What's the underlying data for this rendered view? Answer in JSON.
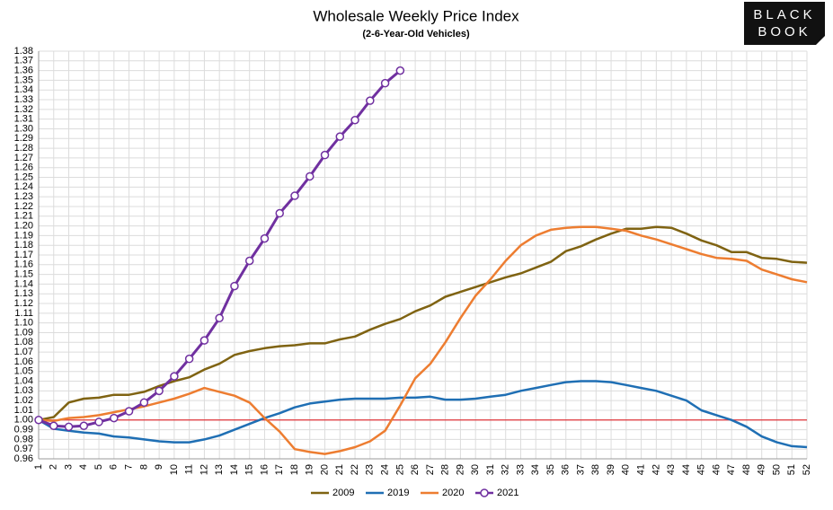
{
  "chart_data": {
    "type": "line",
    "title": "Wholesale Weekly Price Index",
    "subtitle": "(2-6-Year-Old Vehicles)",
    "logo": [
      "BLACK",
      "BOOK"
    ],
    "categories": [
      "1",
      "2",
      "3",
      "4",
      "5",
      "6",
      "7",
      "8",
      "9",
      "10",
      "11",
      "12",
      "13",
      "14",
      "15",
      "16",
      "17",
      "18",
      "19",
      "20",
      "21",
      "22",
      "23",
      "24",
      "25",
      "26",
      "27",
      "28",
      "29",
      "30",
      "31",
      "32",
      "33",
      "34",
      "35",
      "36",
      "37",
      "38",
      "39",
      "40",
      "41",
      "42",
      "43",
      "44",
      "45",
      "46",
      "47",
      "48",
      "49",
      "50",
      "51",
      "52"
    ],
    "ylim": [
      0.96,
      1.38
    ],
    "yticks": [
      {
        "value": 0.96,
        "label": "0.96"
      },
      {
        "value": 0.97,
        "label": "0.97"
      },
      {
        "value": 0.98,
        "label": "0.98"
      },
      {
        "value": 0.99,
        "label": "0.99"
      },
      {
        "value": 1.0,
        "label": "1.00"
      },
      {
        "value": 1.01,
        "label": "1.01"
      },
      {
        "value": 1.02,
        "label": "1.02"
      },
      {
        "value": 1.03,
        "label": "1.03"
      },
      {
        "value": 1.04,
        "label": "1.04"
      },
      {
        "value": 1.05,
        "label": "1.05"
      },
      {
        "value": 1.06,
        "label": "1.06"
      },
      {
        "value": 1.07,
        "label": "1.07"
      },
      {
        "value": 1.08,
        "label": "1.08"
      },
      {
        "value": 1.09,
        "label": "1.09"
      },
      {
        "value": 1.1,
        "label": "1.10"
      },
      {
        "value": 1.11,
        "label": "1.11"
      },
      {
        "value": 1.12,
        "label": "1.12"
      },
      {
        "value": 1.13,
        "label": "1.13"
      },
      {
        "value": 1.14,
        "label": "1.14"
      },
      {
        "value": 1.15,
        "label": "1.15"
      },
      {
        "value": 1.16,
        "label": "1.16"
      },
      {
        "value": 1.17,
        "label": "1.17"
      },
      {
        "value": 1.18,
        "label": "1.18"
      },
      {
        "value": 1.19,
        "label": "1.19"
      },
      {
        "value": 1.2,
        "label": "1.20"
      },
      {
        "value": 1.21,
        "label": "1.21"
      },
      {
        "value": 1.22,
        "label": "1.22"
      },
      {
        "value": 1.23,
        "label": "1.23"
      },
      {
        "value": 1.24,
        "label": "1.24"
      },
      {
        "value": 1.25,
        "label": "1.25"
      },
      {
        "value": 1.26,
        "label": "1.26"
      },
      {
        "value": 1.27,
        "label": "1.27"
      },
      {
        "value": 1.28,
        "label": "1.28"
      },
      {
        "value": 1.29,
        "label": "1.29"
      },
      {
        "value": 1.3,
        "label": "1.30"
      },
      {
        "value": 1.31,
        "label": "1.31"
      },
      {
        "value": 1.32,
        "label": "1.32"
      },
      {
        "value": 1.33,
        "label": "1.33"
      },
      {
        "value": 1.34,
        "label": "1.34"
      },
      {
        "value": 1.35,
        "label": "1.35"
      },
      {
        "value": 1.36,
        "label": "1.36"
      },
      {
        "value": 1.37,
        "label": "1.37"
      },
      {
        "value": 1.38,
        "label": "1.38"
      }
    ],
    "grid": true,
    "reference_line": {
      "value": 1.0,
      "color": "#e0353a"
    },
    "legend": "bottom",
    "series": [
      {
        "name": "2009",
        "color": "#7f6312",
        "markers": false,
        "values": [
          1.0,
          1.003,
          1.018,
          1.022,
          1.023,
          1.026,
          1.026,
          1.029,
          1.035,
          1.04,
          1.044,
          1.052,
          1.058,
          1.067,
          1.071,
          1.074,
          1.076,
          1.077,
          1.079,
          1.079,
          1.083,
          1.086,
          1.093,
          1.099,
          1.104,
          1.112,
          1.118,
          1.127,
          1.132,
          1.137,
          1.142,
          1.147,
          1.151,
          1.157,
          1.163,
          1.174,
          1.179,
          1.186,
          1.192,
          1.197,
          1.197,
          1.199,
          1.198,
          1.192,
          1.185,
          1.18,
          1.173,
          1.173,
          1.167,
          1.166,
          1.163,
          1.162
        ]
      },
      {
        "name": "2019",
        "color": "#1f6fb4",
        "markers": false,
        "values": [
          1.0,
          0.991,
          0.989,
          0.987,
          0.986,
          0.983,
          0.982,
          0.98,
          0.978,
          0.977,
          0.977,
          0.98,
          0.984,
          0.99,
          0.996,
          1.002,
          1.007,
          1.013,
          1.017,
          1.019,
          1.021,
          1.022,
          1.022,
          1.022,
          1.023,
          1.023,
          1.024,
          1.021,
          1.021,
          1.022,
          1.024,
          1.026,
          1.03,
          1.033,
          1.036,
          1.039,
          1.04,
          1.04,
          1.039,
          1.036,
          1.033,
          1.03,
          1.025,
          1.02,
          1.01,
          1.005,
          1.0,
          0.993,
          0.983,
          0.977,
          0.973,
          0.972
        ]
      },
      {
        "name": "2020",
        "color": "#ed7d31",
        "markers": false,
        "values": [
          1.0,
          0.999,
          1.002,
          1.003,
          1.005,
          1.008,
          1.011,
          1.014,
          1.018,
          1.022,
          1.027,
          1.033,
          1.029,
          1.025,
          1.018,
          1.002,
          0.988,
          0.97,
          0.967,
          0.965,
          0.968,
          0.972,
          0.978,
          0.989,
          1.015,
          1.043,
          1.058,
          1.08,
          1.105,
          1.128,
          1.145,
          1.164,
          1.18,
          1.19,
          1.196,
          1.198,
          1.199,
          1.199,
          1.197,
          1.195,
          1.19,
          1.186,
          1.181,
          1.176,
          1.171,
          1.167,
          1.166,
          1.164,
          1.155,
          1.15,
          1.145,
          1.142
        ]
      },
      {
        "name": "2021",
        "color": "#7030a0",
        "markers": true,
        "values": [
          1.0,
          0.994,
          0.993,
          0.994,
          0.998,
          1.002,
          1.009,
          1.018,
          1.03,
          1.045,
          1.063,
          1.082,
          1.105,
          1.138,
          1.164,
          1.187,
          1.213,
          1.231,
          1.251,
          1.273,
          1.292,
          1.309,
          1.329,
          1.347,
          1.36,
          null,
          null,
          null,
          null,
          null,
          null,
          null,
          null,
          null,
          null,
          null,
          null,
          null,
          null,
          null,
          null,
          null,
          null,
          null,
          null,
          null,
          null,
          null,
          null,
          null,
          null,
          null
        ]
      }
    ]
  }
}
